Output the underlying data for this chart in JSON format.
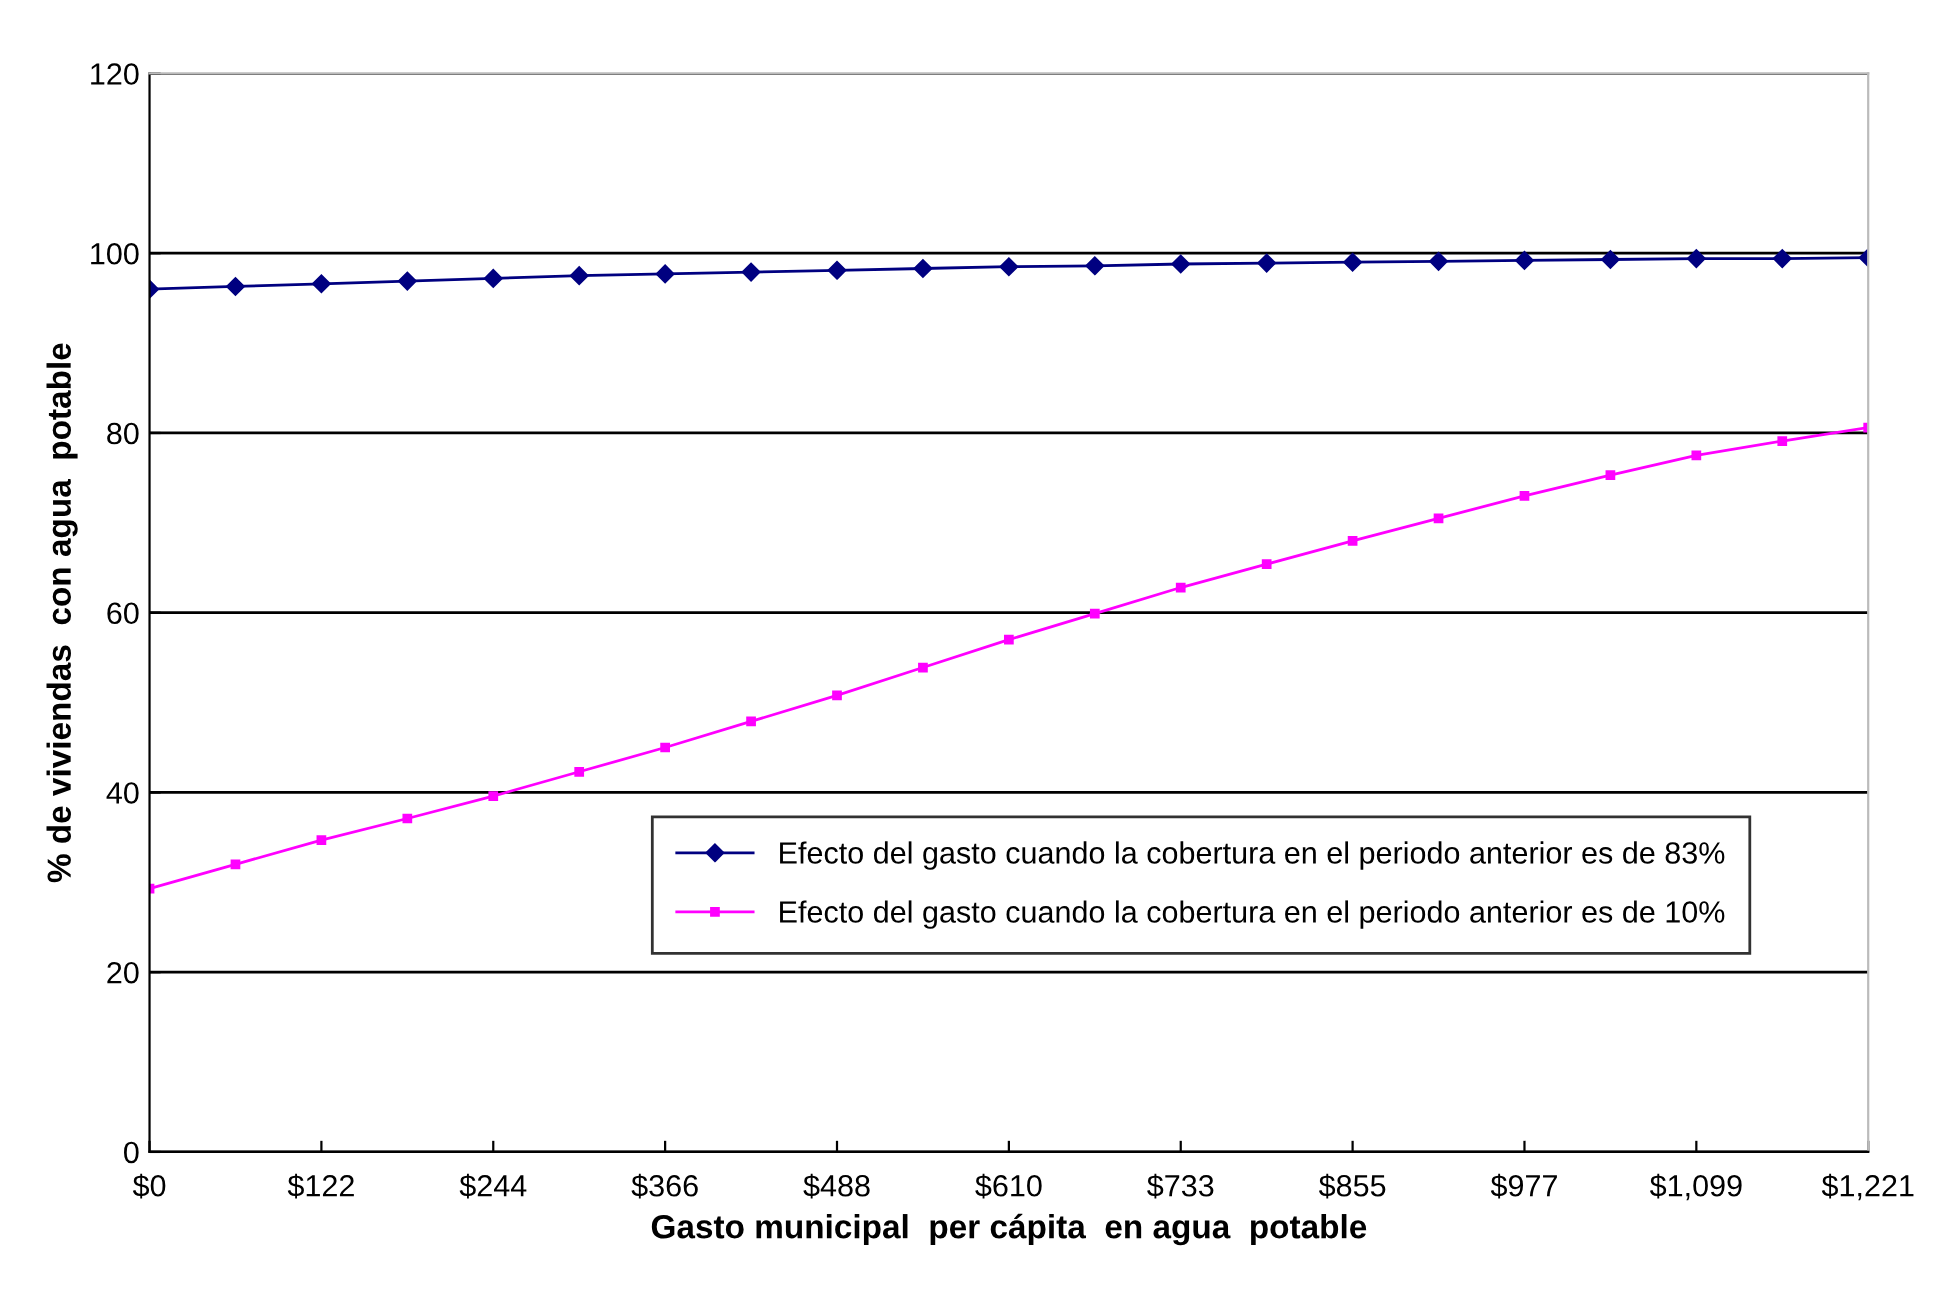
{
  "chart_data": {
    "type": "line",
    "xlabel": "Gasto municipal  per cápita  en agua  potable",
    "ylabel": "% de viviendas  con agua  potable",
    "x": [
      0,
      61.05,
      122.1,
      183.15,
      244.2,
      305.25,
      366.3,
      427.35,
      488.4,
      549.45,
      610.5,
      671.55,
      732.6,
      793.65,
      854.7,
      915.75,
      976.8,
      1037.85,
      1098.9,
      1159.95,
      1221
    ],
    "series": [
      {
        "name": "Efecto del gasto cuando la cobertura en el periodo anterior es de 83%",
        "color": "#000080",
        "marker": "diamond",
        "values": [
          96.0,
          96.3,
          96.6,
          96.9,
          97.2,
          97.5,
          97.7,
          97.9,
          98.1,
          98.3,
          98.5,
          98.6,
          98.8,
          98.9,
          99.0,
          99.1,
          99.2,
          99.3,
          99.4,
          99.4,
          99.5
        ]
      },
      {
        "name": "Efecto del gasto cuando la cobertura en el periodo anterior es de 10%",
        "color": "#ff00ff",
        "marker": "square",
        "values": [
          29.3,
          32.0,
          34.7,
          37.1,
          39.6,
          42.3,
          45.0,
          47.9,
          50.8,
          53.9,
          57.0,
          59.9,
          62.8,
          65.4,
          68.0,
          70.5,
          73.0,
          75.3,
          77.5,
          79.1,
          80.6
        ]
      }
    ],
    "xlim": [
      0,
      1221
    ],
    "xticks": [
      {
        "value": 0,
        "label": "$0"
      },
      {
        "value": 122.1,
        "label": "$122"
      },
      {
        "value": 244.2,
        "label": "$244"
      },
      {
        "value": 366.3,
        "label": "$366"
      },
      {
        "value": 488.4,
        "label": "$488"
      },
      {
        "value": 610.5,
        "label": "$610"
      },
      {
        "value": 732.6,
        "label": "$733"
      },
      {
        "value": 854.7,
        "label": "$855"
      },
      {
        "value": 976.8,
        "label": "$977"
      },
      {
        "value": 1098.9,
        "label": "$1,099"
      },
      {
        "value": 1221,
        "label": "$1,221"
      }
    ],
    "ylim": [
      0,
      120
    ],
    "yticks": [
      0,
      20,
      40,
      60,
      80,
      100,
      120
    ],
    "grid": "y",
    "legend": "bottom right",
    "line_style": "solid"
  }
}
